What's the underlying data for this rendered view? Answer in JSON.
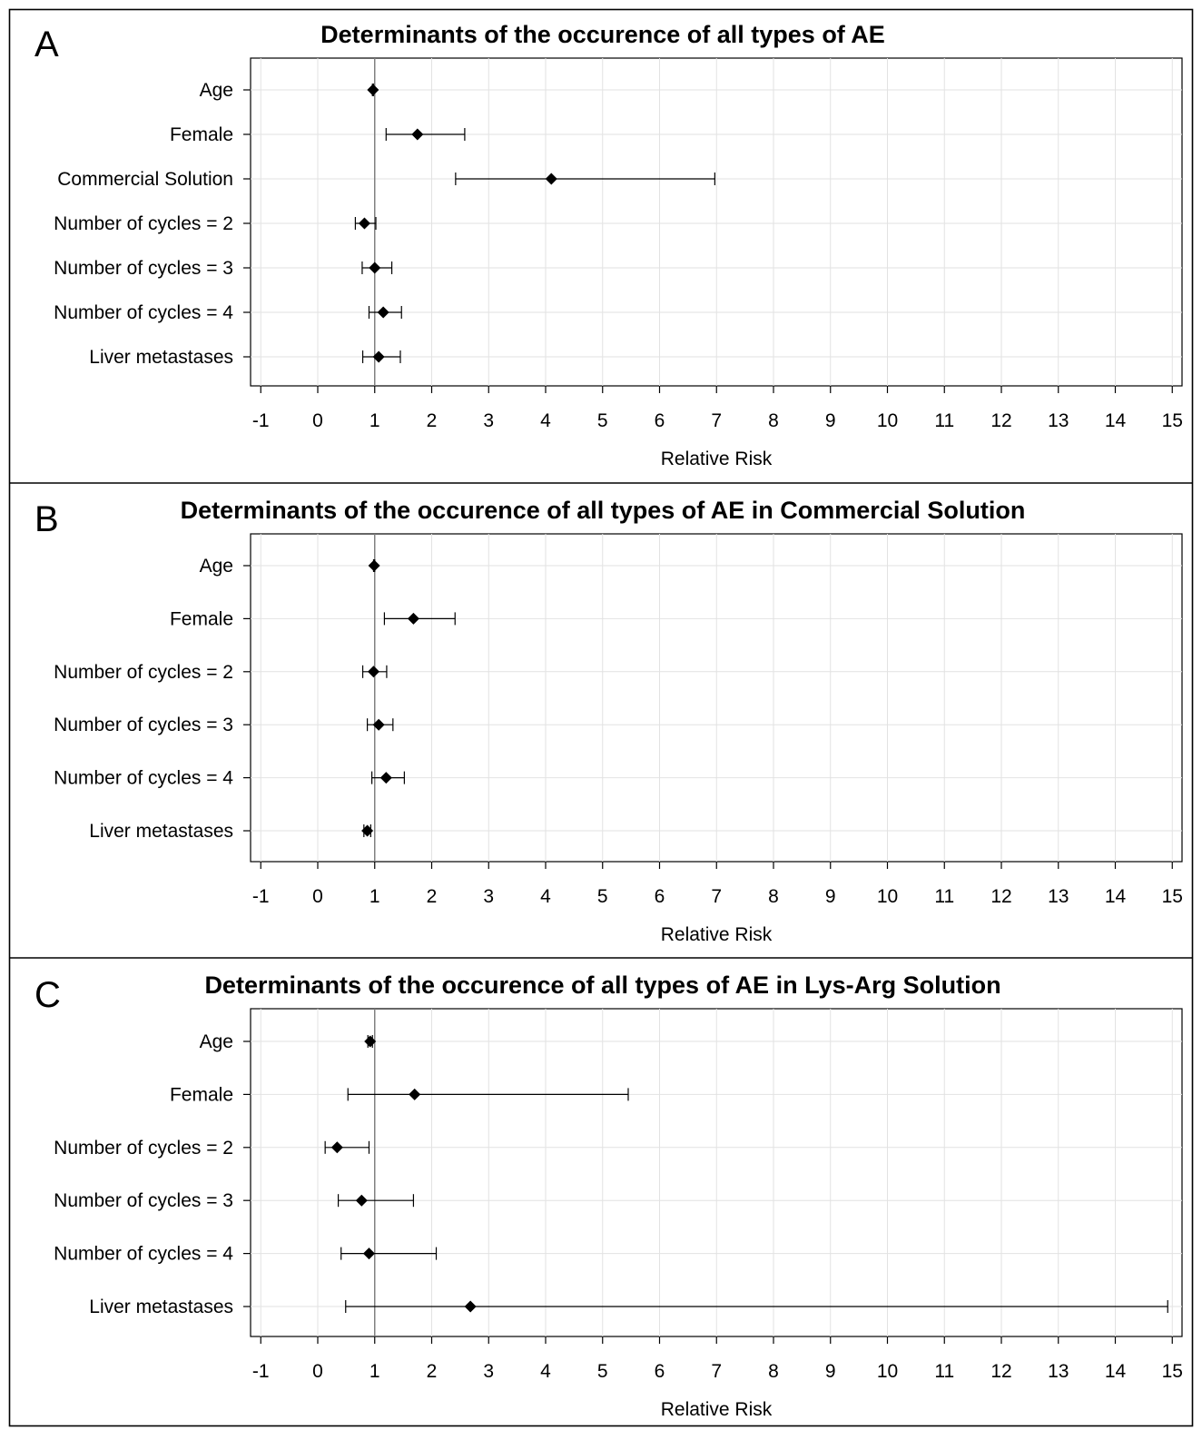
{
  "chart_data": [
    {
      "type": "forest",
      "panel": "A",
      "title": "Determinants of the occurence of all types of AE",
      "xlabel": "Relative Risk",
      "xlim": [
        -1,
        15
      ],
      "xticks": [
        -1,
        0,
        1,
        2,
        3,
        4,
        5,
        6,
        7,
        8,
        9,
        10,
        11,
        12,
        13,
        14,
        15
      ],
      "reference_line": 1,
      "grid": true,
      "rows": [
        {
          "label": "Age",
          "estimate": 0.97,
          "lower": 0.96,
          "upper": 0.98
        },
        {
          "label": "Female",
          "estimate": 1.75,
          "lower": 1.2,
          "upper": 2.58
        },
        {
          "label": "Commercial Solution",
          "estimate": 4.1,
          "lower": 2.42,
          "upper": 6.97
        },
        {
          "label": "Number of cycles = 2",
          "estimate": 0.82,
          "lower": 0.66,
          "upper": 1.02
        },
        {
          "label": "Number of cycles = 3",
          "estimate": 1.0,
          "lower": 0.78,
          "upper": 1.3
        },
        {
          "label": "Number of cycles = 4",
          "estimate": 1.15,
          "lower": 0.9,
          "upper": 1.47
        },
        {
          "label": "Liver metastases",
          "estimate": 1.07,
          "lower": 0.79,
          "upper": 1.45
        }
      ]
    },
    {
      "type": "forest",
      "panel": "B",
      "title": "Determinants of the occurence of all types of AE in Commercial Solution",
      "xlabel": "Relative Risk",
      "xlim": [
        -1,
        15
      ],
      "xticks": [
        -1,
        0,
        1,
        2,
        3,
        4,
        5,
        6,
        7,
        8,
        9,
        10,
        11,
        12,
        13,
        14,
        15
      ],
      "reference_line": 1,
      "grid": true,
      "rows": [
        {
          "label": "Age",
          "estimate": 0.99,
          "lower": 0.98,
          "upper": 1.0
        },
        {
          "label": "Female",
          "estimate": 1.68,
          "lower": 1.17,
          "upper": 2.41
        },
        {
          "label": "Number of cycles = 2",
          "estimate": 0.98,
          "lower": 0.79,
          "upper": 1.21
        },
        {
          "label": "Number of cycles = 3",
          "estimate": 1.07,
          "lower": 0.87,
          "upper": 1.32
        },
        {
          "label": "Number of cycles = 4",
          "estimate": 1.2,
          "lower": 0.95,
          "upper": 1.52
        },
        {
          "label": "Liver metastases",
          "estimate": 0.87,
          "lower": 0.81,
          "upper": 0.93
        }
      ]
    },
    {
      "type": "forest",
      "panel": "C",
      "title": "Determinants of the occurence of all types of AE in Lys-Arg Solution",
      "xlabel": "Relative Risk",
      "xlim": [
        -1,
        15
      ],
      "xticks": [
        -1,
        0,
        1,
        2,
        3,
        4,
        5,
        6,
        7,
        8,
        9,
        10,
        11,
        12,
        13,
        14,
        15
      ],
      "reference_line": 1,
      "grid": true,
      "rows": [
        {
          "label": "Age",
          "estimate": 0.92,
          "lower": 0.88,
          "upper": 0.96
        },
        {
          "label": "Female",
          "estimate": 1.7,
          "lower": 0.53,
          "upper": 5.45
        },
        {
          "label": "Number of cycles = 2",
          "estimate": 0.34,
          "lower": 0.13,
          "upper": 0.9
        },
        {
          "label": "Number of cycles = 3",
          "estimate": 0.77,
          "lower": 0.36,
          "upper": 1.68
        },
        {
          "label": "Number of cycles = 4",
          "estimate": 0.9,
          "lower": 0.41,
          "upper": 2.08
        },
        {
          "label": "Liver metastases",
          "estimate": 2.68,
          "lower": 0.49,
          "upper": 14.92
        }
      ]
    }
  ]
}
